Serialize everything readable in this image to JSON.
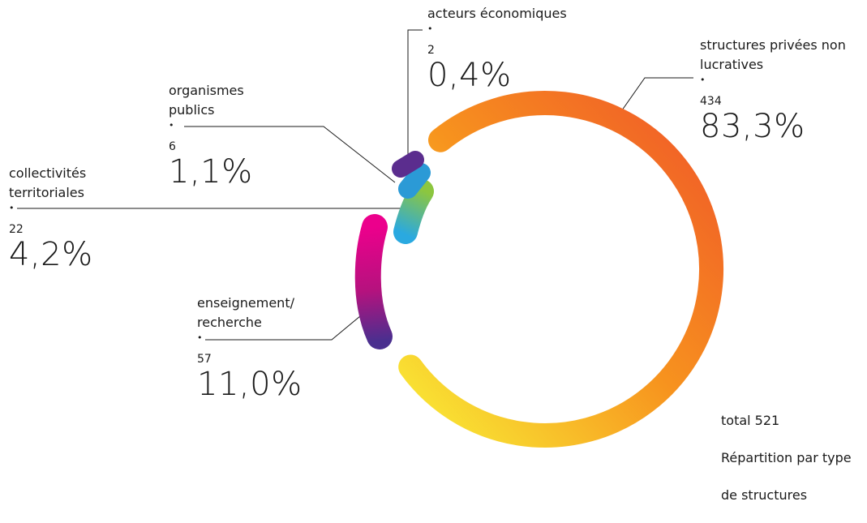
{
  "chart_data": {
    "type": "donut",
    "total_label": "total 521",
    "caption": "Répartition par type de structures",
    "categories": [
      "structures privées non lucratives",
      "enseignement/ recherche",
      "collectivités territoriales",
      "organismes publics",
      "acteurs économiques"
    ],
    "counts": [
      434,
      57,
      22,
      6,
      2
    ],
    "percent_labels": [
      "83,3%",
      "11,0%",
      "4,2%",
      "1,1%",
      "0,4%"
    ],
    "colors": {
      "structures privées non lucratives": [
        "#f05a28",
        "#f7931e",
        "#f9e634"
      ],
      "enseignement/ recherche": [
        "#ec008c",
        "#4a2f8f"
      ],
      "collectivités territoriales": [
        "#8cc63f",
        "#2aa9e0"
      ],
      "organismes publics": [
        "#2b9ad6"
      ],
      "acteurs économiques": [
        "#5b2d8e"
      ]
    }
  },
  "labels": {
    "prive": {
      "name": "structures privées non\nlucratives",
      "count": "434",
      "pct": "83,3%"
    },
    "enseignement": {
      "name": "enseignement/\nrecherche",
      "count": "57",
      "pct": "11,0%"
    },
    "collectivites": {
      "name": "collectivités\nterritoriales",
      "count": "22",
      "pct": "4,2%"
    },
    "organismes": {
      "name": "organismes\npublics",
      "count": "6",
      "pct": "1,1%"
    },
    "acteurs": {
      "name": "acteurs économiques",
      "count": "2",
      "pct": "0,4%"
    }
  },
  "total": {
    "line1": "total 521",
    "line2": "Répartition par type",
    "line3": "de structures"
  },
  "bullet": "•"
}
